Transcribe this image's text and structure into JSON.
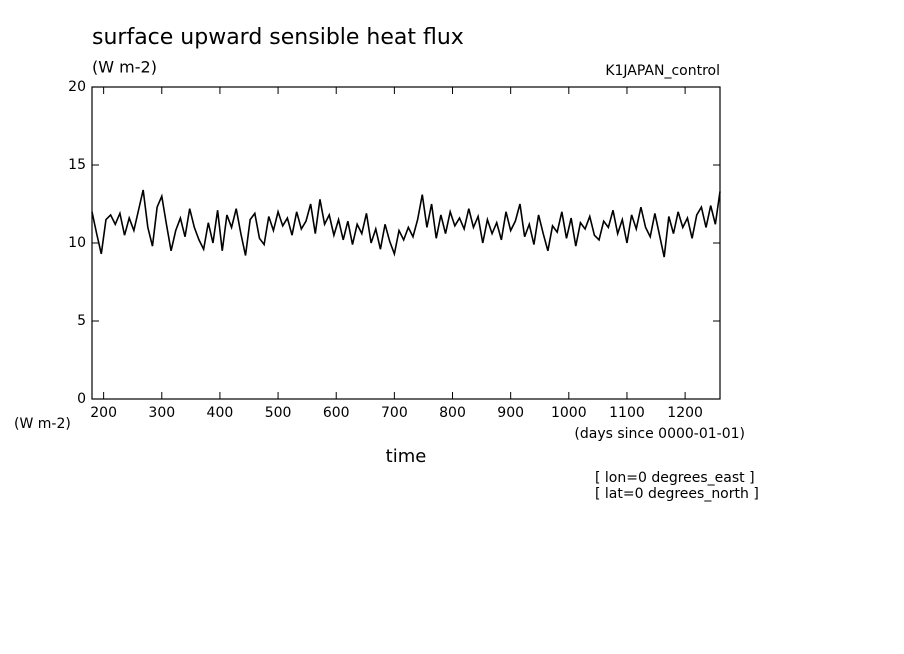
{
  "chart_data": {
    "type": "line",
    "title": "surface upward sensible heat flux",
    "y_unit": "(W m-2)",
    "run_name": "K1JAPAN_control",
    "y_unit_bottom": "(W m-2)",
    "x_unit": "(days since 0000-01-01)",
    "x_label": "time",
    "notes": [
      "[ lon=0 degrees_east ]",
      "[ lat=0 degrees_north ]"
    ],
    "color": "#000000",
    "xlim": [
      180,
      1260
    ],
    "ylim": [
      0,
      20
    ],
    "xticks": [
      200,
      300,
      400,
      500,
      600,
      700,
      800,
      900,
      1000,
      1100,
      1200
    ],
    "yticks": [
      0,
      5,
      10,
      15,
      20
    ],
    "x": [
      180,
      188,
      196,
      204,
      212,
      220,
      228,
      236,
      244,
      252,
      260,
      268,
      276,
      284,
      292,
      300,
      308,
      316,
      324,
      332,
      340,
      348,
      356,
      364,
      372,
      380,
      388,
      396,
      404,
      412,
      420,
      428,
      436,
      444,
      452,
      460,
      468,
      476,
      484,
      492,
      500,
      508,
      516,
      524,
      532,
      540,
      548,
      556,
      564,
      572,
      580,
      588,
      596,
      604,
      612,
      620,
      628,
      636,
      644,
      652,
      660,
      668,
      676,
      684,
      692,
      700,
      708,
      716,
      724,
      732,
      740,
      748,
      756,
      764,
      772,
      780,
      788,
      796,
      804,
      812,
      820,
      828,
      836,
      844,
      852,
      860,
      868,
      876,
      884,
      892,
      900,
      908,
      916,
      924,
      932,
      940,
      948,
      956,
      964,
      972,
      980,
      988,
      996,
      1004,
      1012,
      1020,
      1028,
      1036,
      1044,
      1052,
      1060,
      1068,
      1076,
      1084,
      1092,
      1100,
      1108,
      1116,
      1124,
      1132,
      1140,
      1148,
      1156,
      1164,
      1172,
      1180,
      1188,
      1196,
      1204,
      1212,
      1220,
      1228,
      1236,
      1244,
      1252,
      1260
    ],
    "values": [
      12.0,
      10.6,
      9.3,
      11.5,
      11.8,
      11.2,
      11.9,
      10.5,
      11.6,
      10.8,
      12.1,
      13.4,
      11.0,
      9.8,
      12.3,
      13.0,
      11.2,
      9.5,
      10.8,
      11.6,
      10.4,
      12.2,
      11.0,
      10.2,
      9.6,
      11.3,
      10.0,
      12.1,
      9.5,
      11.8,
      11.0,
      12.2,
      10.6,
      9.2,
      11.5,
      11.9,
      10.3,
      9.9,
      11.7,
      10.8,
      12.0,
      11.1,
      11.6,
      10.5,
      12.0,
      10.9,
      11.4,
      12.5,
      10.6,
      12.8,
      11.2,
      11.8,
      10.5,
      11.5,
      10.2,
      11.4,
      9.9,
      11.2,
      10.6,
      11.9,
      10.0,
      10.9,
      9.6,
      11.2,
      10.1,
      9.3,
      10.8,
      10.2,
      11.0,
      10.4,
      11.5,
      13.1,
      11.0,
      12.5,
      10.3,
      11.8,
      10.6,
      12.0,
      11.1,
      11.6,
      10.9,
      12.2,
      11.0,
      11.7,
      10.0,
      11.5,
      10.6,
      11.3,
      10.2,
      12.0,
      10.8,
      11.4,
      12.5,
      10.4,
      11.2,
      9.9,
      11.8,
      10.6,
      9.5,
      11.1,
      10.7,
      12.0,
      10.3,
      11.6,
      9.8,
      11.3,
      10.9,
      11.7,
      10.5,
      10.2,
      11.4,
      11.0,
      12.1,
      10.6,
      11.5,
      10.0,
      11.8,
      10.9,
      12.3,
      11.0,
      10.4,
      11.9,
      10.5,
      9.1,
      11.7,
      10.6,
      12.0,
      11.0,
      11.6,
      10.3,
      11.8,
      12.3,
      11.0,
      12.4,
      11.2,
      13.3
    ]
  }
}
